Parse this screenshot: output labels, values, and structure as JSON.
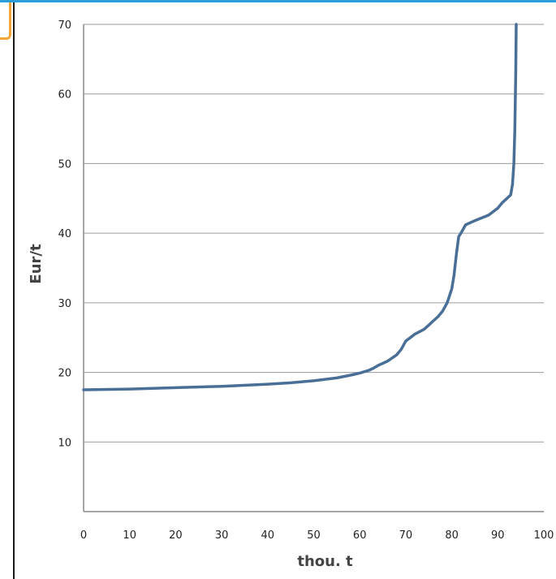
{
  "chart_data": {
    "type": "line",
    "title": "",
    "xlabel": "thou. t",
    "ylabel": "Eur/t",
    "xlim": [
      0,
      100
    ],
    "ylim": [
      0,
      70
    ],
    "x_ticks": [
      0,
      10,
      20,
      30,
      40,
      50,
      60,
      70,
      80,
      90,
      100
    ],
    "y_ticks": [
      10,
      20,
      30,
      40,
      50,
      60,
      70
    ],
    "grid": "horizontal",
    "legend": "none",
    "colors": {
      "line": "#4a6f96",
      "grid": "#9a9a9a",
      "axis": "#888888"
    },
    "series": [
      {
        "x": [
          0,
          10,
          20,
          30,
          40,
          45,
          50,
          55,
          58,
          60,
          62,
          63,
          64,
          66,
          68,
          69,
          70,
          71,
          72,
          74,
          75,
          76,
          77,
          78,
          79,
          80,
          80.5,
          81,
          81.5,
          82,
          83,
          85,
          88,
          90,
          91,
          92,
          92.8,
          93.2,
          93.5,
          93.7,
          93.9,
          94
        ],
        "y": [
          17.5,
          17.6,
          17.8,
          18.0,
          18.3,
          18.5,
          18.8,
          19.2,
          19.6,
          19.9,
          20.3,
          20.6,
          21.0,
          21.6,
          22.5,
          23.3,
          24.5,
          25.0,
          25.5,
          26.2,
          26.8,
          27.4,
          28.0,
          28.8,
          30.0,
          32.0,
          34.0,
          37.0,
          39.5,
          40.0,
          41.2,
          41.8,
          42.6,
          43.6,
          44.4,
          45.0,
          45.5,
          47.0,
          50.0,
          55.0,
          63.0,
          70.0
        ]
      }
    ]
  }
}
